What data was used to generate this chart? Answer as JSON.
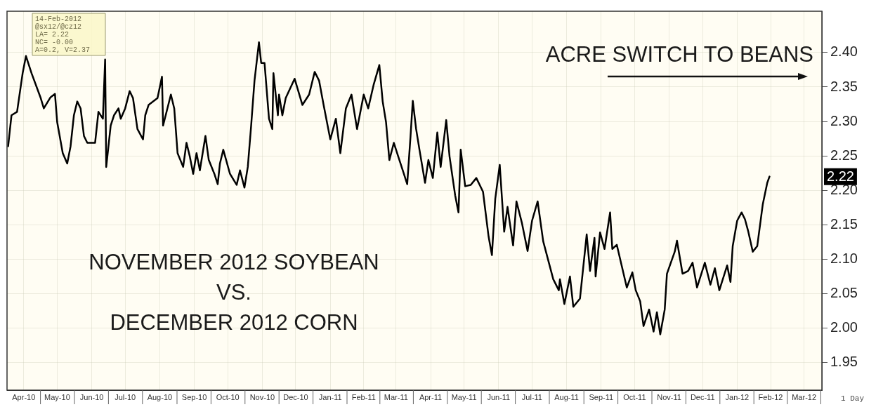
{
  "chart_data": {
    "type": "line",
    "title": "NOVEMBER 2012 SOYBEAN\nVS.\nDECEMBER 2012 CORN",
    "annotations": [
      "ACRE SWITCH TO BEANS",
      "14-Feb-2012",
      "@sx12/@cz12",
      "LA= 2.22",
      "NC= -0.00",
      "A=0.2, V=2.37",
      "1 Day",
      "2.22"
    ],
    "x": [
      "2010-04-02",
      "2010-04-05",
      "2010-04-10",
      "2010-04-15",
      "2010-04-18",
      "2010-04-23",
      "2010-05-01",
      "2010-05-04",
      "2010-05-10",
      "2010-05-14",
      "2010-05-16",
      "2010-05-21",
      "2010-05-25",
      "2010-05-28",
      "2010-05-31",
      "2010-06-03",
      "2010-06-06",
      "2010-06-09",
      "2010-06-12",
      "2010-06-19",
      "2010-06-22",
      "2010-06-26",
      "2010-06-28",
      "2010-06-29",
      "2010-07-03",
      "2010-07-06",
      "2010-07-10",
      "2010-07-12",
      "2010-07-16",
      "2010-07-20",
      "2010-07-23",
      "2010-07-27",
      "2010-08-01",
      "2010-08-03",
      "2010-08-06",
      "2010-08-14",
      "2010-08-18",
      "2010-08-19",
      "2010-08-26",
      "2010-08-29",
      "2010-09-01",
      "2010-09-06",
      "2010-09-09",
      "2010-09-12",
      "2010-09-15",
      "2010-09-18",
      "2010-09-21",
      "2010-09-26",
      "2010-09-29",
      "2010-10-04",
      "2010-10-07",
      "2010-10-09",
      "2010-10-12",
      "2010-10-18",
      "2010-10-24",
      "2010-10-27",
      "2010-10-31",
      "2010-11-03",
      "2010-11-06",
      "2010-11-09",
      "2010-11-13",
      "2010-11-15",
      "2010-11-18",
      "2010-11-22",
      "2010-11-25",
      "2010-11-26",
      "2010-11-30",
      "2010-12-01",
      "2010-12-04",
      "2010-12-07",
      "2010-12-15",
      "2010-12-22",
      "2010-12-28",
      "2011-01-02",
      "2011-01-06",
      "2011-01-10",
      "2011-01-16",
      "2011-01-21",
      "2011-01-25",
      "2011-01-30",
      "2011-02-04",
      "2011-02-09",
      "2011-02-15",
      "2011-02-19",
      "2011-02-24",
      "2011-03-01",
      "2011-03-04",
      "2011-03-07",
      "2011-03-10",
      "2011-03-14",
      "2011-03-19",
      "2011-03-23",
      "2011-03-26",
      "2011-03-29",
      "2011-03-31",
      "2011-04-03",
      "2011-04-06",
      "2011-04-11",
      "2011-04-14",
      "2011-04-18",
      "2011-04-22",
      "2011-04-25",
      "2011-04-30",
      "2011-05-03",
      "2011-05-08",
      "2011-05-11",
      "2011-05-13",
      "2011-05-17",
      "2011-05-22",
      "2011-05-27",
      "2011-06-02",
      "2011-06-07",
      "2011-06-10",
      "2011-06-13",
      "2011-06-17",
      "2011-06-21",
      "2011-06-24",
      "2011-06-29",
      "2011-07-02",
      "2011-07-07",
      "2011-07-12",
      "2011-07-16",
      "2011-07-21",
      "2011-07-26",
      "2011-08-04",
      "2011-08-09",
      "2011-08-10",
      "2011-08-14",
      "2011-08-19",
      "2011-08-22",
      "2011-08-28",
      "2011-09-03",
      "2011-09-06",
      "2011-09-10",
      "2011-09-11",
      "2011-09-15",
      "2011-09-19",
      "2011-09-24",
      "2011-09-26",
      "2011-09-30",
      "2011-10-09",
      "2011-10-14",
      "2011-10-17",
      "2011-10-21",
      "2011-10-24",
      "2011-10-29",
      "2011-11-02",
      "2011-11-05",
      "2011-11-08",
      "2011-11-12",
      "2011-11-14",
      "2011-11-21",
      "2011-11-23",
      "2011-11-28",
      "2011-12-03",
      "2011-12-07",
      "2011-12-11",
      "2011-12-18",
      "2011-12-23",
      "2011-12-27",
      "2011-12-31",
      "2012-01-07",
      "2012-01-10",
      "2012-01-12",
      "2012-01-16",
      "2012-01-20",
      "2012-01-23",
      "2012-01-26",
      "2012-01-30",
      "2012-02-03",
      "2012-02-08",
      "2012-02-12",
      "2012-02-14"
    ],
    "series": [
      {
        "color": "#000000",
        "values": [
          2.264,
          2.309,
          2.314,
          2.37,
          2.395,
          2.37,
          2.335,
          2.319,
          2.335,
          2.34,
          2.299,
          2.254,
          2.239,
          2.264,
          2.309,
          2.329,
          2.319,
          2.279,
          2.269,
          2.269,
          2.314,
          2.304,
          2.39,
          2.234,
          2.294,
          2.309,
          2.319,
          2.304,
          2.319,
          2.344,
          2.334,
          2.289,
          2.274,
          2.309,
          2.324,
          2.334,
          2.365,
          2.294,
          2.339,
          2.319,
          2.254,
          2.234,
          2.269,
          2.249,
          2.224,
          2.254,
          2.229,
          2.279,
          2.244,
          2.224,
          2.209,
          2.239,
          2.259,
          2.224,
          2.208,
          2.229,
          2.204,
          2.234,
          2.294,
          2.359,
          2.415,
          2.385,
          2.385,
          2.304,
          2.289,
          2.37,
          2.309,
          2.339,
          2.309,
          2.334,
          2.362,
          2.324,
          2.339,
          2.372,
          2.359,
          2.324,
          2.274,
          2.304,
          2.254,
          2.319,
          2.339,
          2.289,
          2.339,
          2.319,
          2.354,
          2.382,
          2.329,
          2.299,
          2.244,
          2.269,
          2.244,
          2.224,
          2.209,
          2.279,
          2.33,
          2.289,
          2.259,
          2.211,
          2.244,
          2.218,
          2.284,
          2.234,
          2.302,
          2.249,
          2.193,
          2.168,
          2.259,
          2.206,
          2.208,
          2.218,
          2.198,
          2.133,
          2.106,
          2.188,
          2.237,
          2.14,
          2.176,
          2.12,
          2.184,
          2.152,
          2.112,
          2.156,
          2.184,
          2.126,
          2.071,
          2.055,
          2.071,
          2.035,
          2.075,
          2.031,
          2.043,
          2.136,
          2.083,
          2.131,
          2.075,
          2.139,
          2.115,
          2.168,
          2.115,
          2.121,
          2.059,
          2.081,
          2.055,
          2.039,
          2.003,
          2.027,
          1.995,
          2.023,
          1.991,
          2.027,
          2.079,
          2.111,
          2.127,
          2.079,
          2.083,
          2.095,
          2.059,
          2.095,
          2.063,
          2.087,
          2.055,
          2.091,
          2.067,
          2.119,
          2.156,
          2.168,
          2.158,
          2.14,
          2.111,
          2.119,
          2.18,
          2.211,
          2.22
        ]
      }
    ],
    "xlim": [
      "2010-04-01",
      "2012-04-01"
    ],
    "xticks": [
      {
        "value": "2010-04-16",
        "label": "Apr-10"
      },
      {
        "value": "2010-05-16",
        "label": "May-10"
      },
      {
        "value": "2010-06-16",
        "label": "Jun-10"
      },
      {
        "value": "2010-07-16",
        "label": "Jul-10"
      },
      {
        "value": "2010-08-16",
        "label": "Aug-10"
      },
      {
        "value": "2010-09-16",
        "label": "Sep-10"
      },
      {
        "value": "2010-10-16",
        "label": "Oct-10"
      },
      {
        "value": "2010-11-16",
        "label": "Nov-10"
      },
      {
        "value": "2010-12-16",
        "label": "Dec-10"
      },
      {
        "value": "2011-01-16",
        "label": "Jan-11"
      },
      {
        "value": "2011-02-15",
        "label": "Feb-11"
      },
      {
        "value": "2011-03-16",
        "label": "Mar-11"
      },
      {
        "value": "2011-04-16",
        "label": "Apr-11"
      },
      {
        "value": "2011-05-16",
        "label": "May-11"
      },
      {
        "value": "2011-06-16",
        "label": "Jun-11"
      },
      {
        "value": "2011-07-16",
        "label": "Jul-11"
      },
      {
        "value": "2011-08-16",
        "label": "Aug-11"
      },
      {
        "value": "2011-09-16",
        "label": "Sep-11"
      },
      {
        "value": "2011-10-16",
        "label": "Oct-11"
      },
      {
        "value": "2011-11-16",
        "label": "Nov-11"
      },
      {
        "value": "2011-12-16",
        "label": "Dec-11"
      },
      {
        "value": "2012-01-16",
        "label": "Jan-12"
      },
      {
        "value": "2012-02-15",
        "label": "Feb-12"
      },
      {
        "value": "2012-03-16",
        "label": "Mar-12"
      }
    ],
    "ylim": [
      1.91,
      2.46
    ],
    "yticks": [
      {
        "value": 1.95,
        "label": "1.95"
      },
      {
        "value": 2.0,
        "label": "2.00"
      },
      {
        "value": 2.05,
        "label": "2.05"
      },
      {
        "value": 2.1,
        "label": "2.10"
      },
      {
        "value": 2.15,
        "label": "2.15"
      },
      {
        "value": 2.2,
        "label": "2.20"
      },
      {
        "value": 2.25,
        "label": "2.25"
      },
      {
        "value": 2.3,
        "label": "2.30"
      },
      {
        "value": 2.35,
        "label": "2.35"
      },
      {
        "value": 2.4,
        "label": "2.40"
      }
    ],
    "grid": true,
    "marker": "none",
    "line_style": "solid"
  }
}
